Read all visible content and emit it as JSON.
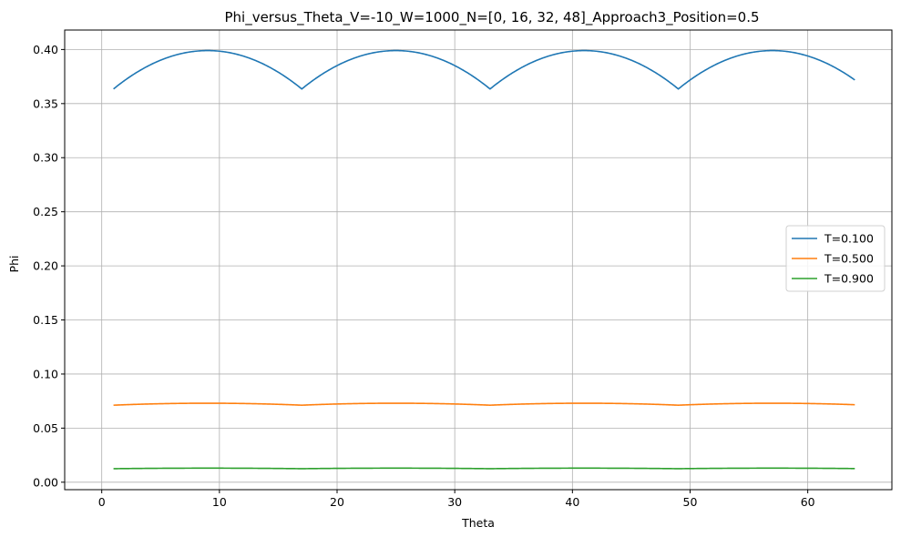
{
  "chart_data": {
    "type": "line",
    "title": "Phi_versus_Theta_V=-10_W=1000_N=[0, 16, 32, 48]_Approach3_Position=0.5",
    "xlabel": "Theta",
    "ylabel": "Phi",
    "xlim": [
      -3.15,
      67.15
    ],
    "ylim": [
      -0.0069,
      0.418
    ],
    "xticks": [
      0,
      10,
      20,
      30,
      40,
      50,
      60
    ],
    "yticks": [
      0.0,
      0.05,
      0.1,
      0.15,
      0.2,
      0.25,
      0.3,
      0.35,
      0.4
    ],
    "ytick_labels": [
      "0.00",
      "0.05",
      "0.10",
      "0.15",
      "0.20",
      "0.25",
      "0.30",
      "0.35",
      "0.40"
    ],
    "grid": true,
    "legend_position": "center-right",
    "x_range": [
      1,
      64
    ],
    "period": 16,
    "series": [
      {
        "name": "T=0.100",
        "color": "#1f77b4",
        "min": 0.3635,
        "max": 0.399
      },
      {
        "name": "T=0.500",
        "color": "#ff7f0e",
        "min": 0.0712,
        "max": 0.073
      },
      {
        "name": "T=0.900",
        "color": "#2ca02c",
        "min": 0.0125,
        "max": 0.013
      }
    ]
  }
}
